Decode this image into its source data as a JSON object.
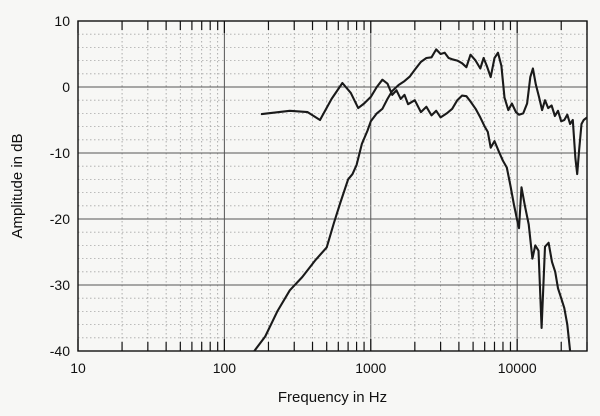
{
  "chart_data": {
    "type": "line",
    "title": "",
    "xlabel": "Frequency in Hz",
    "ylabel": "Amplitude in dB",
    "x_scale": "log",
    "xlim": [
      10,
      30000
    ],
    "ylim": [
      -40,
      10
    ],
    "x_ticks": [
      {
        "value": 10,
        "label": "10"
      },
      {
        "value": 100,
        "label": "100"
      },
      {
        "value": 1000,
        "label": "1000"
      },
      {
        "value": 10000,
        "label": "10000"
      }
    ],
    "y_ticks": [
      {
        "value": 10,
        "label": "10"
      },
      {
        "value": 0,
        "label": "0"
      },
      {
        "value": -10,
        "label": "-10"
      },
      {
        "value": -20,
        "label": "-20"
      },
      {
        "value": -30,
        "label": "-30"
      },
      {
        "value": -40,
        "label": "-40"
      }
    ],
    "grid": true,
    "line_color": "#1a1a1a",
    "series": [
      {
        "points": [
          [
            180,
            -4.1
          ],
          [
            280,
            -3.6
          ],
          [
            370,
            -3.8
          ],
          [
            450,
            -5.0
          ],
          [
            540,
            -1.8
          ],
          [
            640,
            0.6
          ],
          [
            730,
            -0.9
          ],
          [
            820,
            -3.2
          ],
          [
            900,
            -2.5
          ],
          [
            1000,
            -1.5
          ],
          [
            1100,
            0.0
          ],
          [
            1200,
            1.1
          ],
          [
            1300,
            0.5
          ],
          [
            1400,
            -1.2
          ],
          [
            1500,
            -0.5
          ],
          [
            1600,
            -1.8
          ],
          [
            1700,
            -1.2
          ],
          [
            1800,
            -2.6
          ],
          [
            2000,
            -2.0
          ],
          [
            2200,
            -3.8
          ],
          [
            2400,
            -3.0
          ],
          [
            2600,
            -4.3
          ],
          [
            2800,
            -3.6
          ],
          [
            3000,
            -4.6
          ],
          [
            3300,
            -4.0
          ],
          [
            3600,
            -3.3
          ],
          [
            3900,
            -2.0
          ],
          [
            4200,
            -1.3
          ],
          [
            4500,
            -1.4
          ],
          [
            4800,
            -2.2
          ],
          [
            5200,
            -3.3
          ],
          [
            5600,
            -4.6
          ],
          [
            6000,
            -6.0
          ],
          [
            6300,
            -6.8
          ],
          [
            6600,
            -9.2
          ],
          [
            7000,
            -8.2
          ],
          [
            7500,
            -9.8
          ],
          [
            8000,
            -11.2
          ],
          [
            8500,
            -12.2
          ],
          [
            9000,
            -15.0
          ],
          [
            9500,
            -17.8
          ],
          [
            10000,
            -20.2
          ],
          [
            10300,
            -21.4
          ],
          [
            10700,
            -15.2
          ],
          [
            11300,
            -18.0
          ],
          [
            12000,
            -20.8
          ],
          [
            12700,
            -26.0
          ],
          [
            13300,
            -24.0
          ],
          [
            14000,
            -24.8
          ],
          [
            14700,
            -36.5
          ],
          [
            15500,
            -24.2
          ],
          [
            16400,
            -23.6
          ],
          [
            17300,
            -26.5
          ],
          [
            18200,
            -28.0
          ],
          [
            19000,
            -30.5
          ],
          [
            20000,
            -32.0
          ],
          [
            21000,
            -33.5
          ],
          [
            22000,
            -36.0
          ],
          [
            23000,
            -40.0
          ]
        ]
      },
      {
        "points": [
          [
            160,
            -40.0
          ],
          [
            190,
            -37.8
          ],
          [
            230,
            -34.0
          ],
          [
            280,
            -30.8
          ],
          [
            340,
            -28.8
          ],
          [
            420,
            -26.2
          ],
          [
            500,
            -24.3
          ],
          [
            560,
            -20.6
          ],
          [
            620,
            -17.5
          ],
          [
            700,
            -14.0
          ],
          [
            750,
            -13.2
          ],
          [
            800,
            -11.8
          ],
          [
            870,
            -8.6
          ],
          [
            950,
            -6.6
          ],
          [
            1000,
            -5.2
          ],
          [
            1100,
            -4.0
          ],
          [
            1200,
            -3.3
          ],
          [
            1300,
            -1.8
          ],
          [
            1400,
            -0.6
          ],
          [
            1550,
            0.3
          ],
          [
            1700,
            0.9
          ],
          [
            1850,
            1.6
          ],
          [
            2000,
            2.6
          ],
          [
            2200,
            3.8
          ],
          [
            2400,
            4.4
          ],
          [
            2600,
            4.5
          ],
          [
            2800,
            5.7
          ],
          [
            3000,
            5.0
          ],
          [
            3200,
            5.2
          ],
          [
            3400,
            4.4
          ],
          [
            3600,
            4.2
          ],
          [
            3900,
            4.0
          ],
          [
            4200,
            3.6
          ],
          [
            4500,
            3.0
          ],
          [
            4800,
            4.9
          ],
          [
            5200,
            4.0
          ],
          [
            5600,
            2.8
          ],
          [
            5900,
            4.4
          ],
          [
            6200,
            3.2
          ],
          [
            6600,
            1.5
          ],
          [
            7000,
            4.4
          ],
          [
            7400,
            5.2
          ],
          [
            7800,
            3.2
          ],
          [
            8200,
            -1.6
          ],
          [
            8700,
            -3.5
          ],
          [
            9200,
            -2.5
          ],
          [
            9800,
            -3.8
          ],
          [
            10300,
            -4.2
          ],
          [
            11000,
            -4.0
          ],
          [
            11700,
            -2.5
          ],
          [
            12300,
            1.5
          ],
          [
            12800,
            2.8
          ],
          [
            13400,
            0.4
          ],
          [
            14100,
            -1.5
          ],
          [
            14800,
            -3.5
          ],
          [
            15500,
            -2.0
          ],
          [
            16300,
            -3.2
          ],
          [
            17200,
            -2.8
          ],
          [
            18100,
            -4.4
          ],
          [
            19000,
            -3.6
          ],
          [
            20000,
            -5.2
          ],
          [
            21000,
            -5.0
          ],
          [
            22000,
            -4.2
          ],
          [
            23000,
            -5.6
          ],
          [
            24000,
            -5.0
          ],
          [
            25000,
            -10.8
          ],
          [
            25700,
            -13.2
          ],
          [
            26500,
            -9.6
          ],
          [
            27500,
            -5.6
          ],
          [
            28500,
            -5.0
          ],
          [
            30000,
            -4.6
          ]
        ]
      }
    ]
  }
}
